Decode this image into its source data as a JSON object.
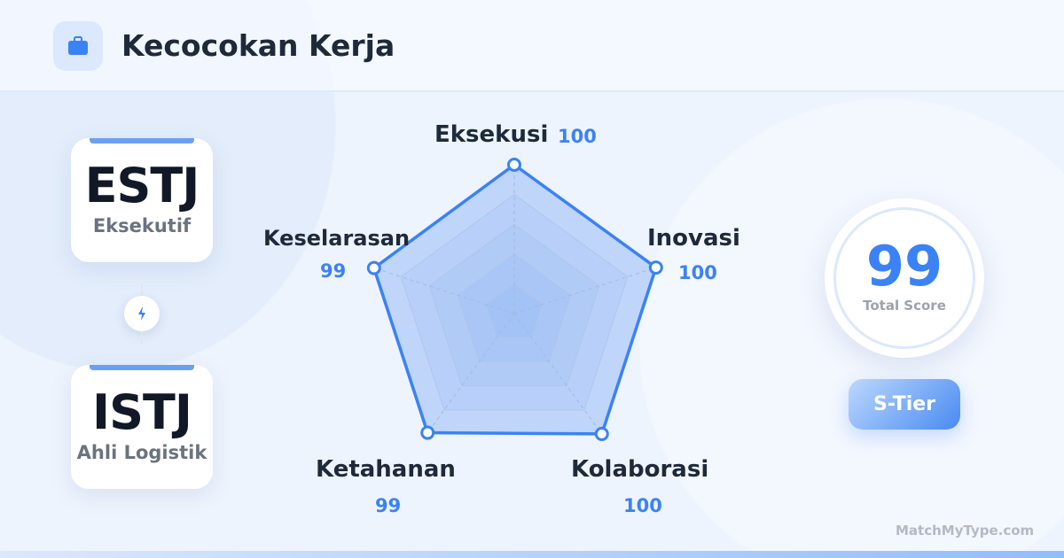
{
  "header": {
    "title": "Kecocokan Kerja",
    "icon": "briefcase-icon"
  },
  "types": [
    {
      "code": "ESTJ",
      "name": "Eksekutif"
    },
    {
      "code": "ISTJ",
      "name": "Ahli Logistik"
    }
  ],
  "connector_icon": "lightning-icon",
  "chart_data": {
    "type": "radar",
    "max": 100,
    "axes": [
      {
        "label": "Eksekusi",
        "value": 100
      },
      {
        "label": "Inovasi",
        "value": 100
      },
      {
        "label": "Kolaborasi",
        "value": 100
      },
      {
        "label": "Ketahanan",
        "value": 99
      },
      {
        "label": "Keselarasan",
        "value": 99
      }
    ],
    "color": "#3b82f6"
  },
  "score": {
    "value": "99",
    "label": "Total Score",
    "tier": "S-Tier"
  },
  "brand": "MatchMyType.com"
}
